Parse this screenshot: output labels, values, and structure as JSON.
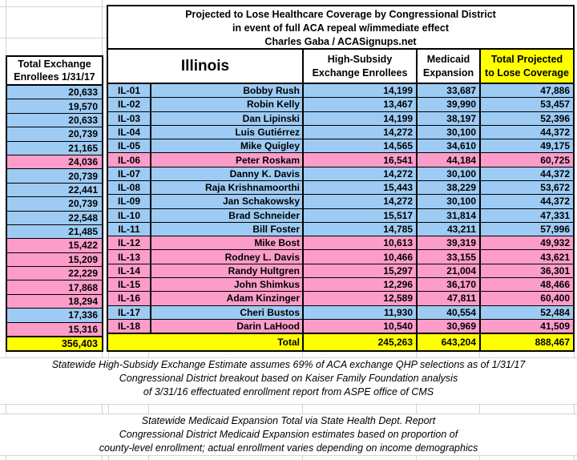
{
  "colors": {
    "democrat_row": "#9DCBF3",
    "republican_row": "#FC9DC9",
    "highlight_yellow": "#FFFF00",
    "grid_line": "#D4D4D4"
  },
  "title": {
    "lines": [
      "Projected to Lose Healthcare Coverage by Congressional District",
      "in event of full ACA repeal w/immediate effect",
      "Charles Gaba / ACASignups.net"
    ]
  },
  "left_table": {
    "header_lines": [
      "Total Exchange",
      "Enrollees 1/31/17"
    ],
    "total": "356,403"
  },
  "table": {
    "state_label": "Illinois",
    "columns": {
      "high_subsidy": [
        "High-Subsidy",
        "Exchange Enrollees"
      ],
      "medicaid": [
        "Medicaid",
        "Expansion"
      ],
      "projected_total": [
        "Total Projected",
        "to Lose Coverage"
      ]
    },
    "rows": [
      {
        "district": "IL-01",
        "rep": "Bobby Rush",
        "party": "D",
        "exchange": "20,633",
        "high_subsidy": "14,199",
        "medicaid": "33,687",
        "projected_total": "47,886"
      },
      {
        "district": "IL-02",
        "rep": "Robin Kelly",
        "party": "D",
        "exchange": "19,570",
        "high_subsidy": "13,467",
        "medicaid": "39,990",
        "projected_total": "53,457"
      },
      {
        "district": "IL-03",
        "rep": "Dan Lipinski",
        "party": "D",
        "exchange": "20,633",
        "high_subsidy": "14,199",
        "medicaid": "38,197",
        "projected_total": "52,396"
      },
      {
        "district": "IL-04",
        "rep": "Luis Gutiérrez",
        "party": "D",
        "exchange": "20,739",
        "high_subsidy": "14,272",
        "medicaid": "30,100",
        "projected_total": "44,372"
      },
      {
        "district": "IL-05",
        "rep": "Mike Quigley",
        "party": "D",
        "exchange": "21,165",
        "high_subsidy": "14,565",
        "medicaid": "34,610",
        "projected_total": "49,175"
      },
      {
        "district": "IL-06",
        "rep": "Peter Roskam",
        "party": "R",
        "exchange": "24,036",
        "high_subsidy": "16,541",
        "medicaid": "44,184",
        "projected_total": "60,725"
      },
      {
        "district": "IL-07",
        "rep": "Danny K. Davis",
        "party": "D",
        "exchange": "20,739",
        "high_subsidy": "14,272",
        "medicaid": "30,100",
        "projected_total": "44,372"
      },
      {
        "district": "IL-08",
        "rep": "Raja Krishnamoorthi",
        "party": "D",
        "exchange": "22,441",
        "high_subsidy": "15,443",
        "medicaid": "38,229",
        "projected_total": "53,672"
      },
      {
        "district": "IL-09",
        "rep": "Jan Schakowsky",
        "party": "D",
        "exchange": "20,739",
        "high_subsidy": "14,272",
        "medicaid": "30,100",
        "projected_total": "44,372"
      },
      {
        "district": "IL-10",
        "rep": "Brad Schneider",
        "party": "D",
        "exchange": "22,548",
        "high_subsidy": "15,517",
        "medicaid": "31,814",
        "projected_total": "47,331"
      },
      {
        "district": "IL-11",
        "rep": "Bill Foster",
        "party": "D",
        "exchange": "21,485",
        "high_subsidy": "14,785",
        "medicaid": "43,211",
        "projected_total": "57,996"
      },
      {
        "district": "IL-12",
        "rep": "Mike Bost",
        "party": "R",
        "exchange": "15,422",
        "high_subsidy": "10,613",
        "medicaid": "39,319",
        "projected_total": "49,932"
      },
      {
        "district": "IL-13",
        "rep": "Rodney L. Davis",
        "party": "R",
        "exchange": "15,209",
        "high_subsidy": "10,466",
        "medicaid": "33,155",
        "projected_total": "43,621"
      },
      {
        "district": "IL-14",
        "rep": "Randy Hultgren",
        "party": "R",
        "exchange": "22,229",
        "high_subsidy": "15,297",
        "medicaid": "21,004",
        "projected_total": "36,301"
      },
      {
        "district": "IL-15",
        "rep": "John Shimkus",
        "party": "R",
        "exchange": "17,868",
        "high_subsidy": "12,296",
        "medicaid": "36,170",
        "projected_total": "48,466"
      },
      {
        "district": "IL-16",
        "rep": "Adam Kinzinger",
        "party": "R",
        "exchange": "18,294",
        "high_subsidy": "12,589",
        "medicaid": "47,811",
        "projected_total": "60,400"
      },
      {
        "district": "IL-17",
        "rep": "Cheri Bustos",
        "party": "D",
        "exchange": "17,336",
        "high_subsidy": "11,930",
        "medicaid": "40,554",
        "projected_total": "52,484"
      },
      {
        "district": "IL-18",
        "rep": "Darin LaHood",
        "party": "R",
        "exchange": "15,316",
        "high_subsidy": "10,540",
        "medicaid": "30,969",
        "projected_total": "41,509"
      }
    ],
    "total_label": "Total",
    "totals": {
      "high_subsidy": "245,263",
      "medicaid": "643,204",
      "projected_total": "888,467"
    }
  },
  "footnotes": {
    "exchange": [
      "Statewide High-Subsidy Exchange Estimate assumes 69% of ACA exchange QHP selections as of 1/31/17",
      "Congressional District breakout based on Kaiser Family Foundation analysis",
      "of 3/31/16 effectuated enrollment report from ASPE office of CMS"
    ],
    "medicaid": [
      "Statewide Medicaid Expansion Total via State Health Dept. Report",
      "Congressional District Medicaid Expansion estimates based on proportion of",
      "county-level enrollment; actual enrollment varies depending on income demographics"
    ]
  }
}
